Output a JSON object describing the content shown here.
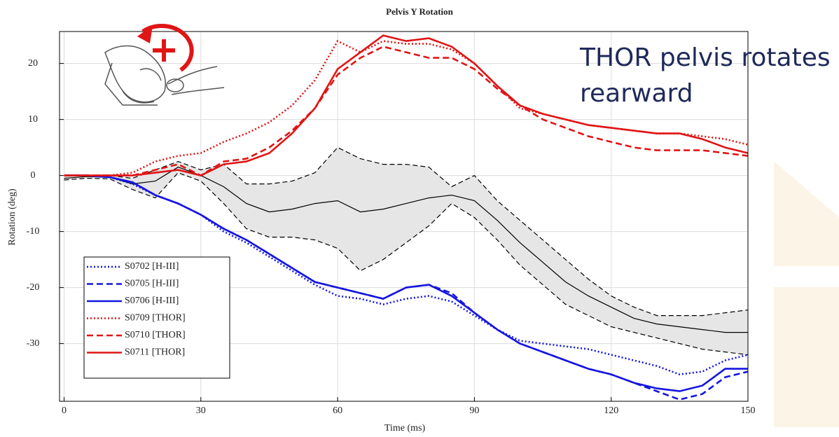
{
  "chart_data": {
    "type": "line",
    "title": "Pelvis Y Rotation",
    "xlabel": "Time (ms)",
    "ylabel": "Rotation (deg)",
    "annotation": [
      "THOR pelvis rotates",
      "rearward"
    ],
    "xlim": [
      -1,
      150
    ],
    "xticks": [
      0,
      30,
      60,
      90,
      120,
      150
    ],
    "ylim": [
      -40.3,
      25.7
    ],
    "yticks": [
      -30,
      -20,
      -10,
      0,
      10,
      20
    ],
    "grid": true,
    "x": [
      0,
      5,
      10,
      15,
      20,
      25,
      30,
      35,
      40,
      45,
      50,
      55,
      60,
      65,
      70,
      75,
      80,
      85,
      90,
      95,
      100,
      105,
      110,
      115,
      120,
      125,
      130,
      135,
      140,
      145,
      150
    ],
    "series": [
      {
        "name": "S0702 [H-III]",
        "color": "#1515e0",
        "line_style": "dotted",
        "values": [
          0,
          0,
          -0.3,
          -1.5,
          -3.5,
          -5,
          -7,
          -10,
          -12,
          -14.5,
          -17,
          -19.5,
          -21.5,
          -22,
          -23,
          -22,
          -21.5,
          -22.5,
          -25,
          -27.5,
          -29.5,
          -30,
          -30.5,
          -31,
          -32,
          -33,
          -34,
          -35.5,
          -35,
          -33,
          -32
        ]
      },
      {
        "name": "S0705 [H-III]",
        "color": "#1515e0",
        "line_style": "dashed",
        "values": [
          0,
          0,
          -0.3,
          -1.2,
          -3.5,
          -5,
          -7,
          -9.5,
          -11.5,
          -14,
          -16.5,
          -19,
          -20,
          -21,
          -22,
          -20,
          -19.5,
          -21,
          -24.5,
          -27.5,
          -30,
          -31.5,
          -33,
          -34.5,
          -35.5,
          -37,
          -38.5,
          -40,
          -39,
          -36,
          -35
        ]
      },
      {
        "name": "S0706 [H-III]",
        "color": "#1515e0",
        "line_style": "solid",
        "values": [
          0,
          0,
          -0.3,
          -1.2,
          -3.5,
          -5,
          -7,
          -9.5,
          -11.5,
          -14,
          -16.5,
          -19,
          -20,
          -21,
          -22,
          -20,
          -19.5,
          -21.5,
          -24.5,
          -27.5,
          -30,
          -31.5,
          -33,
          -34.5,
          -35.5,
          -37,
          -38,
          -38.5,
          -37.5,
          -34.5,
          -34.5
        ]
      },
      {
        "name": "S0709 [THOR]",
        "color": "#e01515",
        "line_style": "dotted",
        "values": [
          0,
          0,
          0,
          0.5,
          2.5,
          3.5,
          4,
          6,
          7.5,
          9.5,
          12.5,
          17,
          24,
          22,
          24,
          23.5,
          23.5,
          22.5,
          20,
          16,
          12,
          11,
          10,
          9,
          8.5,
          8,
          7.5,
          7.5,
          7,
          6.5,
          5.5
        ]
      },
      {
        "name": "S0710 [THOR]",
        "color": "#e01515",
        "line_style": "dashed",
        "values": [
          0,
          0,
          0,
          0,
          1,
          2,
          0,
          2.5,
          3,
          5,
          8,
          12,
          18,
          21,
          23,
          22,
          21,
          21,
          19,
          15.5,
          12.5,
          10,
          8.5,
          7,
          6,
          5,
          4.5,
          4.5,
          4.5,
          4,
          3.5
        ]
      },
      {
        "name": "S0711 [THOR]",
        "color": "#e01515",
        "line_style": "solid",
        "values": [
          0,
          0,
          0,
          0,
          0.5,
          1,
          0,
          2,
          2.5,
          4,
          7.5,
          12,
          19,
          22,
          25,
          24,
          24.5,
          23,
          20,
          16,
          12.5,
          11,
          10,
          9,
          8.5,
          8,
          7.5,
          7.5,
          6.5,
          5,
          4
        ]
      }
    ],
    "corridor": {
      "color": "#000000",
      "fill": "#e6e6e6",
      "mean": [
        -0.5,
        -0.2,
        -0.3,
        -1.5,
        -1,
        1.5,
        0,
        -2,
        -5,
        -6.5,
        -6,
        -5,
        -4.5,
        -6.5,
        -6,
        -5,
        -4,
        -3.5,
        -4.5,
        -8,
        -12,
        -15.5,
        -19,
        -21.5,
        -23.5,
        -25.5,
        -26.5,
        -27,
        -27.5,
        -28,
        -28
      ],
      "upper": [
        0,
        0,
        0,
        -0.5,
        1,
        2.5,
        1,
        2,
        -1.5,
        -1.5,
        -1,
        0.5,
        5,
        3,
        2,
        2,
        1.5,
        -2,
        0,
        -4.5,
        -8,
        -11.5,
        -15,
        -18.5,
        -21.5,
        -23.5,
        -25,
        -25,
        -25,
        -24.5,
        -24
      ],
      "lower": [
        -0.8,
        -0.5,
        -0.6,
        -2.5,
        -4,
        0.5,
        -1,
        -5,
        -9.5,
        -11,
        -11,
        -11.5,
        -13,
        -17,
        -15,
        -12,
        -9,
        -5,
        -7.5,
        -11.5,
        -16,
        -19.5,
        -23,
        -25,
        -27,
        -28,
        -29,
        -30,
        -31,
        -31.5,
        -32
      ]
    }
  }
}
